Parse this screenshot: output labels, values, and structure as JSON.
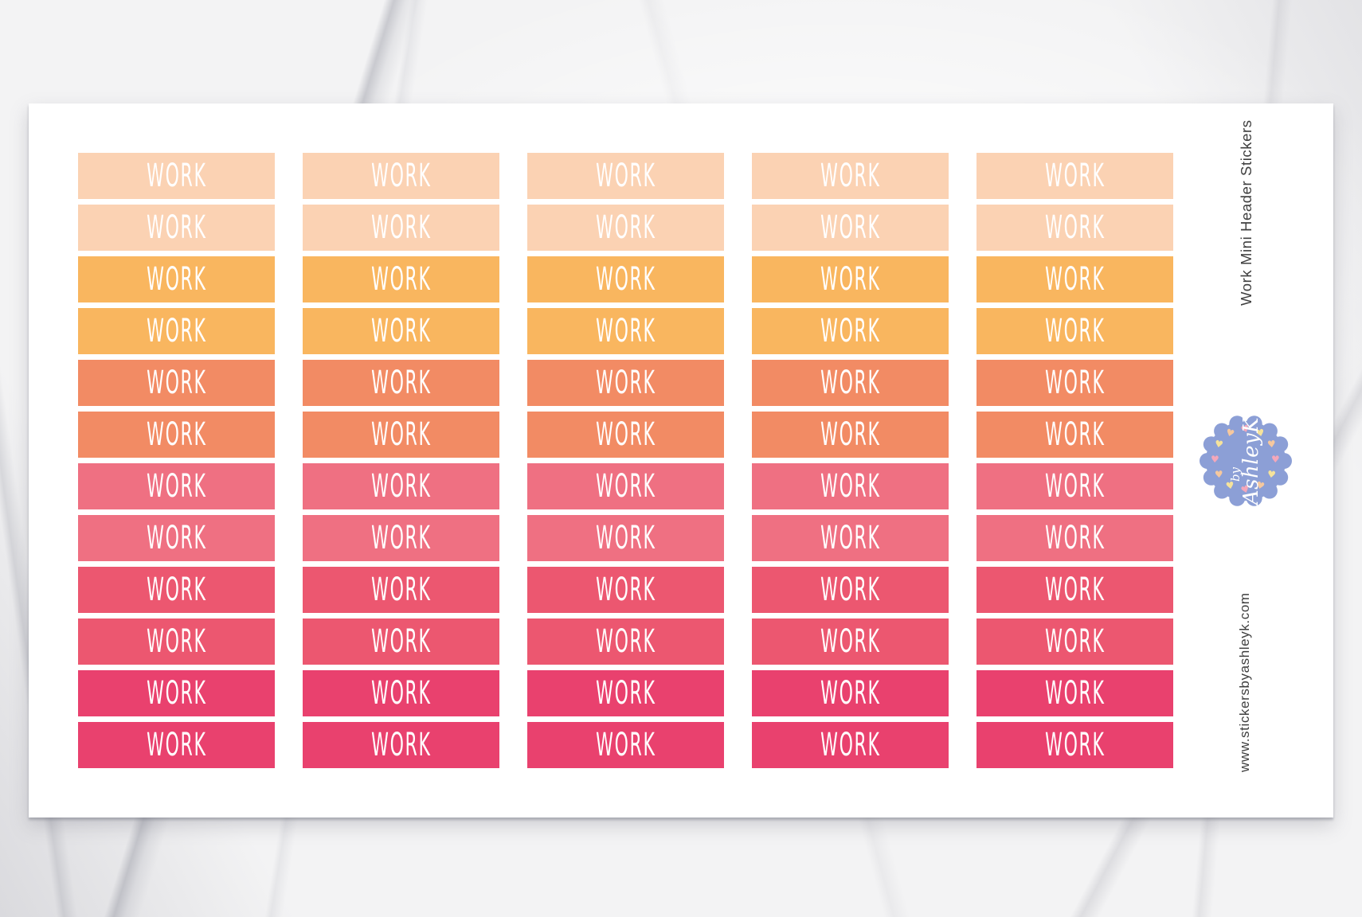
{
  "sheet": {
    "sticker_label": "WORK",
    "columns": 5,
    "rows": 12,
    "row_colors": [
      "#FBD2B3",
      "#FBD2B3",
      "#F9B65F",
      "#F9B65F",
      "#F28B64",
      "#F28B64",
      "#EF7082",
      "#EF7082",
      "#EC5770",
      "#EC5770",
      "#E9416E",
      "#E9416E"
    ],
    "sticker_text_color": "#FFFFFF"
  },
  "side": {
    "title_vertical": "Work Mini Header Stickers",
    "website_vertical": "www.stickersbyashleyk.com",
    "text_color": "#3F3F3F"
  },
  "badge": {
    "line1": "by",
    "line2": "AshleyK",
    "background": "#8C9FD6",
    "text_color": "#FFFFFF",
    "heart_colors": [
      "#F4A7BA",
      "#F6E39B",
      "#F6C89E"
    ]
  },
  "icons": {
    "heart": "♥"
  }
}
